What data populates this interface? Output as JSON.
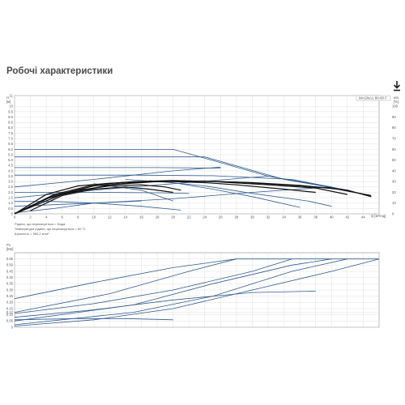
{
  "page": {
    "title": "Робочі характеристики",
    "download_icon": "download-icon"
  },
  "chart_data": [
    {
      "type": "line",
      "name": "head-chart",
      "legend_label": "MAGNA1 80-60 F",
      "xlabel": "Q [м³/год]",
      "ylabel_left": "H\n[м]",
      "ylabel_right": "eta\n[%]",
      "xlim": [
        0,
        46
      ],
      "ylim": [
        0,
        11
      ],
      "y2lim": [
        0,
        110
      ],
      "x_ticks": [
        "0",
        "2",
        "4",
        "6",
        "8",
        "10",
        "12",
        "14",
        "16",
        "18",
        "20",
        "22",
        "24",
        "26",
        "28",
        "30",
        "32",
        "34",
        "36",
        "38",
        "40",
        "42",
        "44"
      ],
      "y_ticks": [
        "0",
        "0.5",
        "1.0",
        "1.5",
        "2.0",
        "2.5",
        "3.0",
        "3.5",
        "4.0",
        "4.5",
        "5.0",
        "5.5",
        "6.0",
        "6.5",
        "7.0",
        "7.5",
        "8.0",
        "8.5",
        "9.0",
        "9.5",
        "10",
        "11"
      ],
      "y2_ticks": [
        "0",
        "10",
        "20",
        "30",
        "40",
        "50",
        "60",
        "70",
        "80",
        "90",
        "100"
      ],
      "notes": [
        "Рідина, що перекачується = Вода",
        "Температура рідини, що перекачується = 60 °C",
        "Щільність = 983.2 кг/м³"
      ],
      "series_pump": [
        {
          "style": "blue",
          "points": [
            [
              0,
              6
            ],
            [
              20,
              6
            ],
            [
              22,
              5.6
            ],
            [
              32,
              3.5
            ],
            [
              42,
              2.2
            ],
            [
              45,
              1.6
            ]
          ]
        },
        {
          "style": "blue",
          "points": [
            [
              0,
              5.3
            ],
            [
              24,
              5.3
            ],
            [
              34,
              3.2
            ],
            [
              42,
              2.2
            ],
            [
              45,
              1.6
            ]
          ]
        },
        {
          "style": "blue",
          "points": [
            [
              0,
              4.3
            ],
            [
              18,
              4.3
            ],
            [
              26,
              4.25
            ]
          ]
        },
        {
          "style": "blue",
          "points": [
            [
              0,
              3.6
            ],
            [
              15,
              3.6
            ],
            [
              25,
              3.55
            ],
            [
              35,
              3.2
            ],
            [
              42,
              2.2
            ],
            [
              45,
              1.6
            ]
          ]
        },
        {
          "style": "blue",
          "points": [
            [
              0,
              2.0
            ],
            [
              10,
              2.0
            ],
            [
              19,
              1.95
            ],
            [
              22,
              1.9
            ]
          ]
        },
        {
          "style": "blue",
          "points": [
            [
              0,
              1.15
            ],
            [
              5,
              1.15
            ],
            [
              10,
              1.0
            ],
            [
              16,
              0.7
            ],
            [
              21,
              0.35
            ]
          ]
        },
        {
          "style": "blue",
          "points": [
            [
              0,
              2.5
            ],
            [
              10,
              3.2
            ],
            [
              20,
              4.0
            ],
            [
              26,
              4.35
            ]
          ]
        },
        {
          "style": "blue",
          "points": [
            [
              0,
              1.5
            ],
            [
              10,
              2.2
            ],
            [
              20,
              2.8
            ],
            [
              32,
              3.5
            ],
            [
              40,
              2.5
            ]
          ]
        },
        {
          "style": "blue",
          "points": [
            [
              0,
              0.7
            ],
            [
              10,
              1.0
            ],
            [
              20,
              1.4
            ],
            [
              30,
              2.0
            ],
            [
              40,
              2.5
            ]
          ]
        },
        {
          "style": "blue",
          "points": [
            [
              0,
              0.1
            ],
            [
              5,
              0.5
            ],
            [
              10,
              1.0
            ],
            [
              16,
              1.2
            ]
          ]
        },
        {
          "style": "blue",
          "points": [
            [
              14,
              3.2
            ],
            [
              20,
              2.9
            ],
            [
              25,
              2.3
            ],
            [
              30,
              1.6
            ],
            [
              36,
              0.6
            ]
          ]
        },
        {
          "style": "blue",
          "points": [
            [
              17,
              3.1
            ],
            [
              24,
              2.6
            ],
            [
              30,
              1.9
            ],
            [
              37,
              1.2
            ],
            [
              40,
              0.7
            ]
          ]
        },
        {
          "style": "blue",
          "points": [
            [
              10,
              2.8
            ],
            [
              16,
              2.2
            ],
            [
              20,
              1.2
            ]
          ]
        }
      ],
      "series_eta": [
        {
          "style": "black",
          "points": [
            [
              0,
              0
            ],
            [
              4,
              18
            ],
            [
              8,
              26
            ],
            [
              12,
              28.5
            ],
            [
              16,
              30
            ],
            [
              20,
              30
            ],
            [
              24,
              29
            ],
            [
              28,
              27
            ],
            [
              34,
              23
            ],
            [
              38,
              20
            ]
          ]
        },
        {
          "style": "black",
          "points": [
            [
              0,
              0
            ],
            [
              5,
              18
            ],
            [
              10,
              27
            ],
            [
              15,
              30
            ],
            [
              20,
              31
            ],
            [
              25,
              30
            ],
            [
              32,
              27
            ],
            [
              38,
              24
            ],
            [
              42,
              18
            ]
          ]
        },
        {
          "style": "black",
          "points": [
            [
              0,
              0
            ],
            [
              5,
              17
            ],
            [
              10,
              26
            ],
            [
              16,
              29.5
            ],
            [
              22,
              30.5
            ],
            [
              28,
              29.5
            ],
            [
              34,
              27
            ],
            [
              40,
              24
            ],
            [
              45,
              17
            ]
          ]
        },
        {
          "style": "black",
          "points": [
            [
              0,
              0
            ],
            [
              6,
              18
            ],
            [
              12,
              27
            ],
            [
              18,
              30
            ],
            [
              24,
              30.5
            ],
            [
              30,
              29
            ],
            [
              36,
              26.5
            ],
            [
              42,
              22
            ],
            [
              45,
              16
            ]
          ]
        },
        {
          "style": "black",
          "points": [
            [
              0,
              0
            ],
            [
              4,
              14
            ],
            [
              8,
              22
            ],
            [
              12,
              26
            ],
            [
              16,
              27
            ],
            [
              19,
              25
            ],
            [
              21,
              22
            ]
          ]
        },
        {
          "style": "black",
          "points": [
            [
              2,
              3
            ],
            [
              6,
              17
            ],
            [
              10,
              23
            ],
            [
              14,
              25
            ],
            [
              17,
              23
            ],
            [
              20,
              20
            ]
          ]
        }
      ]
    },
    {
      "type": "line",
      "name": "power-chart",
      "ylabel_left": "P1\n[kW]",
      "xlim": [
        0,
        46
      ],
      "ylim": [
        0,
        0.6
      ],
      "y_ticks": [
        "0",
        "0.05",
        "0.10",
        "0.12",
        "0.15",
        "0.20",
        "0.25",
        "0.30",
        "0.35",
        "0.40",
        "0.45",
        "0.50",
        "0.55"
      ],
      "series": [
        {
          "points": [
            [
              0,
              0.23
            ],
            [
              10,
              0.36
            ],
            [
              20,
              0.48
            ],
            [
              28,
              0.55
            ],
            [
              46,
              0.55
            ]
          ]
        },
        {
          "points": [
            [
              0,
              0.12
            ],
            [
              12,
              0.27
            ],
            [
              22,
              0.45
            ],
            [
              28,
              0.55
            ]
          ]
        },
        {
          "points": [
            [
              0,
              0.11
            ],
            [
              10,
              0.19
            ],
            [
              20,
              0.3
            ],
            [
              30,
              0.45
            ],
            [
              35,
              0.55
            ]
          ]
        },
        {
          "points": [
            [
              0,
              0.05
            ],
            [
              15,
              0.18
            ],
            [
              25,
              0.35
            ],
            [
              35,
              0.5
            ],
            [
              40,
              0.55
            ]
          ]
        },
        {
          "points": [
            [
              0,
              0.02
            ],
            [
              15,
              0.12
            ],
            [
              25,
              0.25
            ],
            [
              35,
              0.45
            ],
            [
              42,
              0.55
            ]
          ]
        },
        {
          "points": [
            [
              0,
              0.01
            ],
            [
              10,
              0.06
            ],
            [
              20,
              0.15
            ],
            [
              30,
              0.3
            ],
            [
              40,
              0.45
            ],
            [
              46,
              0.55
            ]
          ]
        },
        {
          "points": [
            [
              0,
              0.08
            ],
            [
              10,
              0.14
            ],
            [
              20,
              0.22
            ],
            [
              30,
              0.28
            ],
            [
              38,
              0.29
            ]
          ]
        },
        {
          "points": [
            [
              0,
              0.06
            ],
            [
              8,
              0.07
            ],
            [
              14,
              0.07
            ],
            [
              20,
              0.06
            ]
          ]
        }
      ]
    }
  ],
  "colors": {
    "blue": "#2f5c92",
    "black": "#111111",
    "grid": "#d4d4d4",
    "axis": "#777777"
  }
}
